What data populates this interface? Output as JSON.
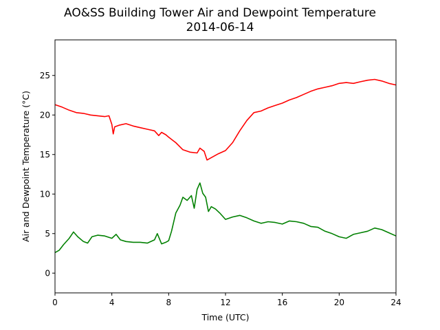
{
  "chart_data": {
    "type": "line",
    "title": "AO&SS Building Tower Air and Dewpoint Temperature",
    "subtitle": "2014-06-14",
    "xlabel": "Time (UTC)",
    "ylabel": "Air and Dewpoint Temperature (°C)",
    "xlim": [
      0,
      24
    ],
    "ylim": [
      -2.5,
      29.5
    ],
    "xticks": [
      0,
      4,
      8,
      12,
      16,
      20,
      24
    ],
    "yticks": [
      0,
      5,
      10,
      15,
      20,
      25
    ],
    "grid": false,
    "legend": "none",
    "series": [
      {
        "color": "#ff0000",
        "x": [
          0,
          0.5,
          1,
          1.5,
          2,
          2.5,
          3,
          3.5,
          3.8,
          4,
          4.1,
          4.2,
          4.5,
          5,
          5.5,
          6,
          6.5,
          7,
          7.3,
          7.5,
          7.8,
          8,
          8.5,
          9,
          9.5,
          10,
          10.2,
          10.5,
          10.7,
          11,
          11.5,
          12,
          12.5,
          13,
          13.5,
          14,
          14.5,
          15,
          15.5,
          16,
          16.5,
          17,
          17.5,
          18,
          18.5,
          19,
          19.5,
          20,
          20.5,
          21,
          21.5,
          22,
          22.5,
          23,
          23.5,
          24
        ],
        "y": [
          21.3,
          21.0,
          20.6,
          20.3,
          20.2,
          20.0,
          19.9,
          19.8,
          19.9,
          18.8,
          17.6,
          18.5,
          18.7,
          18.9,
          18.6,
          18.4,
          18.2,
          18.0,
          17.4,
          17.8,
          17.5,
          17.2,
          16.5,
          15.6,
          15.3,
          15.2,
          15.8,
          15.4,
          14.3,
          14.6,
          15.1,
          15.5,
          16.5,
          18.0,
          19.3,
          20.3,
          20.5,
          20.9,
          21.2,
          21.5,
          21.9,
          22.2,
          22.6,
          23.0,
          23.3,
          23.5,
          23.7,
          24.0,
          24.1,
          24.0,
          24.2,
          24.4,
          24.5,
          24.3,
          24.0,
          23.8
        ]
      },
      {
        "color": "#008000",
        "x": [
          0,
          0.3,
          0.6,
          1,
          1.3,
          1.6,
          2,
          2.3,
          2.6,
          3,
          3.5,
          4,
          4.3,
          4.6,
          5,
          5.5,
          6,
          6.5,
          7,
          7.2,
          7.5,
          7.8,
          8,
          8.2,
          8.5,
          8.8,
          9,
          9.3,
          9.6,
          9.8,
          10,
          10.2,
          10.4,
          10.6,
          10.8,
          11,
          11.3,
          11.6,
          12,
          12.5,
          13,
          13.5,
          14,
          14.5,
          15,
          15.5,
          16,
          16.5,
          17,
          17.5,
          18,
          18.5,
          19,
          19.5,
          20,
          20.5,
          21,
          21.5,
          22,
          22.5,
          23,
          23.5,
          24
        ],
        "y": [
          2.6,
          2.9,
          3.6,
          4.4,
          5.2,
          4.6,
          4.0,
          3.8,
          4.6,
          4.8,
          4.7,
          4.4,
          4.9,
          4.2,
          4.0,
          3.9,
          3.9,
          3.8,
          4.2,
          5.0,
          3.7,
          3.9,
          4.1,
          5.3,
          7.6,
          8.6,
          9.6,
          9.2,
          9.8,
          8.2,
          10.6,
          11.4,
          10.1,
          9.6,
          7.8,
          8.4,
          8.1,
          7.6,
          6.8,
          7.1,
          7.3,
          7.0,
          6.6,
          6.3,
          6.5,
          6.4,
          6.2,
          6.6,
          6.5,
          6.3,
          5.9,
          5.8,
          5.3,
          5.0,
          4.6,
          4.4,
          4.9,
          5.1,
          5.3,
          5.7,
          5.5,
          5.1,
          4.7
        ]
      }
    ]
  }
}
